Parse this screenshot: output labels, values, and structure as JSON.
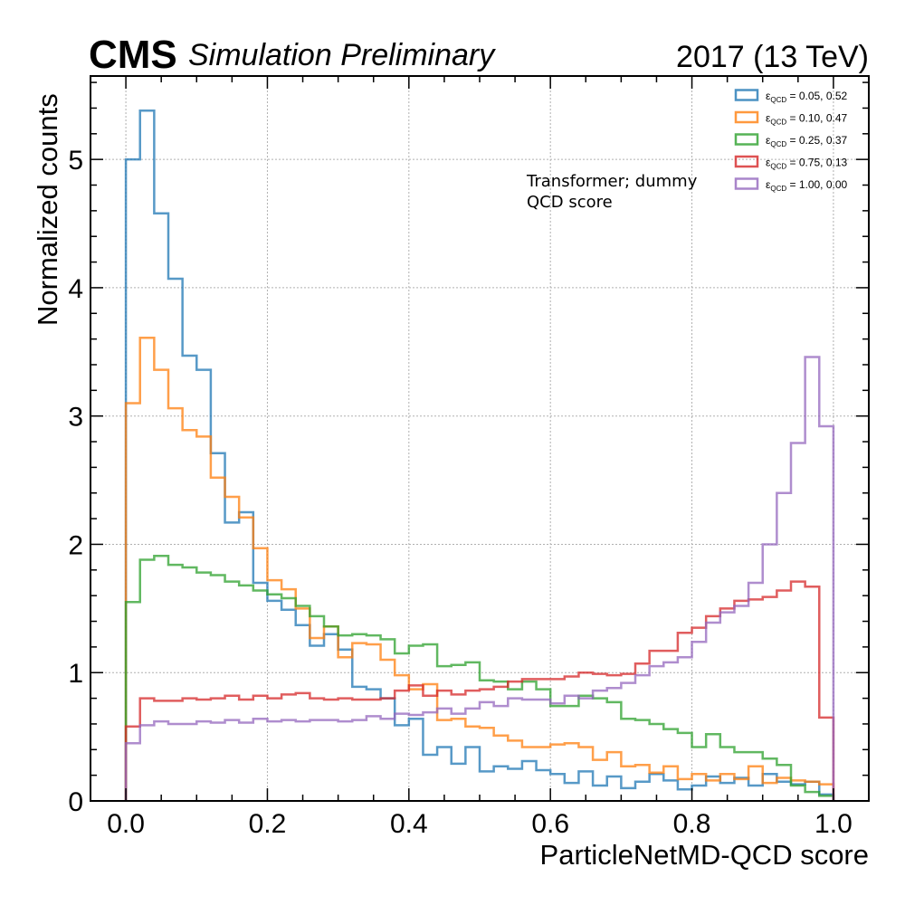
{
  "header": {
    "experiment": "CMS",
    "status": "Simulation Preliminary",
    "lumi": "2017 (13 TeV)"
  },
  "annotation": [
    "Transformer; dummy",
    "QCD score"
  ],
  "chart_data": {
    "type": "step-histogram",
    "xlabel": "ParticleNetMD-QCD score",
    "ylabel": "Normalized counts",
    "xlim": [
      -0.05,
      1.05
    ],
    "ylim": [
      0,
      5.65
    ],
    "xticks": [
      "0.0",
      "0.2",
      "0.4",
      "0.6",
      "0.8",
      "1.0"
    ],
    "yticks": [
      "0",
      "1",
      "2",
      "3",
      "4",
      "5"
    ],
    "grid": true,
    "legend_position": "top-right",
    "bin_edges": [
      0.0,
      0.02,
      0.04,
      0.06,
      0.08,
      0.1,
      0.12,
      0.14,
      0.16,
      0.18,
      0.2,
      0.22,
      0.24,
      0.26,
      0.28,
      0.3,
      0.32,
      0.34,
      0.36,
      0.38,
      0.4,
      0.42,
      0.44,
      0.46,
      0.48,
      0.5,
      0.52,
      0.54,
      0.56,
      0.58,
      0.6,
      0.62,
      0.64,
      0.66,
      0.68,
      0.7,
      0.72,
      0.74,
      0.76,
      0.78,
      0.8,
      0.82,
      0.84,
      0.86,
      0.88,
      0.9,
      0.92,
      0.94,
      0.96,
      0.98,
      1.0
    ],
    "series": [
      {
        "name": "ε_QCD = 0.05, 0.52",
        "color": "#1f77b4",
        "values": [
          5.0,
          5.38,
          4.58,
          4.07,
          3.47,
          3.36,
          2.71,
          2.17,
          2.25,
          1.7,
          1.56,
          1.49,
          1.37,
          1.21,
          1.3,
          1.18,
          0.89,
          0.87,
          0.8,
          0.59,
          0.64,
          0.36,
          0.42,
          0.29,
          0.42,
          0.23,
          0.27,
          0.25,
          0.31,
          0.24,
          0.21,
          0.14,
          0.23,
          0.12,
          0.19,
          0.1,
          0.15,
          0.21,
          0.16,
          0.09,
          0.12,
          0.19,
          0.14,
          0.18,
          0.12,
          0.21,
          0.15,
          0.13,
          0.15,
          0.05
        ]
      },
      {
        "name": "ε_QCD = 0.10, 0.47",
        "color": "#ff7f0e",
        "values": [
          3.1,
          3.61,
          3.36,
          3.06,
          2.89,
          2.84,
          2.52,
          2.37,
          2.21,
          1.97,
          1.72,
          1.65,
          1.5,
          1.27,
          1.36,
          1.12,
          1.23,
          1.22,
          1.1,
          0.98,
          0.87,
          0.91,
          0.63,
          0.64,
          0.58,
          0.57,
          0.51,
          0.47,
          0.42,
          0.42,
          0.44,
          0.45,
          0.42,
          0.32,
          0.38,
          0.27,
          0.28,
          0.22,
          0.27,
          0.17,
          0.21,
          0.16,
          0.21,
          0.17,
          0.27,
          0.14,
          0.18,
          0.16,
          0.15,
          0.13
        ]
      },
      {
        "name": "ε_QCD = 0.25, 0.37",
        "color": "#2ca02c",
        "values": [
          1.55,
          1.88,
          1.91,
          1.84,
          1.82,
          1.78,
          1.76,
          1.71,
          1.68,
          1.64,
          1.61,
          1.58,
          1.52,
          1.44,
          1.36,
          1.29,
          1.3,
          1.29,
          1.26,
          1.15,
          1.21,
          1.22,
          1.05,
          1.06,
          1.08,
          0.94,
          0.93,
          0.87,
          0.93,
          0.87,
          0.74,
          0.74,
          0.82,
          0.8,
          0.77,
          0.64,
          0.63,
          0.6,
          0.56,
          0.53,
          0.42,
          0.52,
          0.42,
          0.38,
          0.38,
          0.33,
          0.28,
          0.12,
          0.07,
          0.04
        ]
      },
      {
        "name": "ε_QCD = 0.75, 0.13",
        "color": "#d62728",
        "values": [
          0.58,
          0.8,
          0.78,
          0.78,
          0.8,
          0.79,
          0.8,
          0.82,
          0.79,
          0.82,
          0.8,
          0.83,
          0.84,
          0.8,
          0.79,
          0.8,
          0.79,
          0.79,
          0.8,
          0.86,
          0.9,
          0.82,
          0.86,
          0.83,
          0.86,
          0.87,
          0.89,
          0.93,
          0.95,
          0.95,
          0.95,
          0.97,
          1.0,
          0.99,
          0.98,
          0.99,
          1.07,
          1.17,
          1.17,
          1.31,
          1.35,
          1.44,
          1.5,
          1.56,
          1.57,
          1.59,
          1.64,
          1.71,
          1.67,
          0.65
        ]
      },
      {
        "name": "ε_QCD = 1.00, 0.00",
        "color": "#9467bd",
        "values": [
          0.45,
          0.59,
          0.62,
          0.6,
          0.6,
          0.62,
          0.61,
          0.63,
          0.61,
          0.64,
          0.62,
          0.63,
          0.62,
          0.63,
          0.63,
          0.62,
          0.63,
          0.66,
          0.64,
          0.68,
          0.67,
          0.69,
          0.72,
          0.68,
          0.72,
          0.77,
          0.74,
          0.8,
          0.79,
          0.79,
          0.76,
          0.82,
          0.8,
          0.86,
          0.88,
          0.92,
          0.98,
          1.05,
          1.08,
          1.12,
          1.24,
          1.39,
          1.47,
          1.52,
          1.7,
          2.0,
          2.4,
          2.79,
          3.46,
          2.92
        ]
      }
    ]
  }
}
